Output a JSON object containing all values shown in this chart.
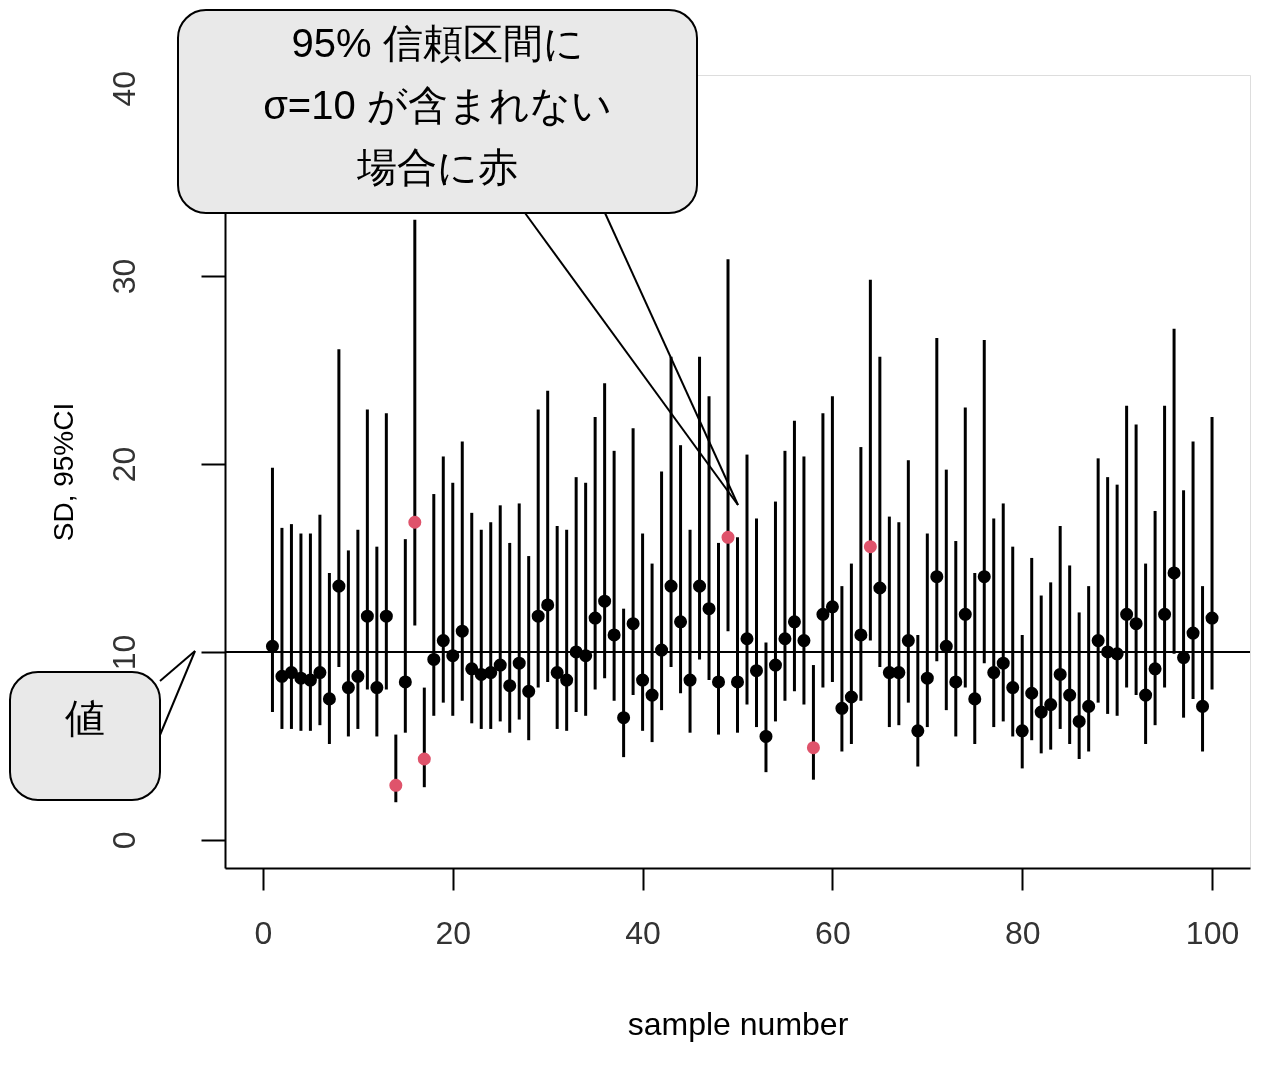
{
  "chart_data": {
    "type": "scatter",
    "xlabel": "sample number",
    "ylabel": "SD, 95%CI",
    "xlim": [
      -4,
      104
    ],
    "ylim": [
      -1.5,
      40.7
    ],
    "xticks": [
      0,
      20,
      40,
      60,
      80,
      100
    ],
    "yticks": [
      0,
      10,
      20,
      30,
      40
    ],
    "marker": "circle",
    "series": [
      {
        "color": "#000000",
        "x": [
          1,
          2,
          3,
          4,
          5,
          6,
          7,
          8,
          9,
          10,
          11,
          12,
          13,
          15,
          18,
          19,
          20,
          21,
          22,
          23,
          24,
          25,
          26,
          27,
          28,
          29,
          30,
          31,
          32,
          33,
          34,
          35,
          36,
          37,
          38,
          39,
          40,
          41,
          42,
          43,
          44,
          45,
          46,
          47,
          48,
          50,
          51,
          52,
          53,
          54,
          55,
          56,
          57,
          59,
          60,
          61,
          62,
          63,
          65,
          66,
          67,
          68,
          69,
          70,
          71,
          72,
          73,
          74,
          75,
          76,
          77,
          78,
          79,
          80,
          81,
          82,
          83,
          84,
          85,
          86,
          87,
          88,
          89,
          90,
          91,
          92,
          93,
          94,
          95,
          96,
          97,
          98,
          99,
          100
        ],
        "values": [
          10.3,
          8.7,
          8.9,
          8.6,
          8.5,
          8.9,
          7.5,
          13.5,
          8.1,
          8.7,
          11.9,
          8.1,
          11.9,
          8.4,
          9.6,
          10.6,
          9.8,
          11.1,
          9.1,
          8.8,
          8.9,
          9.3,
          8.2,
          9.4,
          7.9,
          11.9,
          12.5,
          8.9,
          8.5,
          10.0,
          9.8,
          11.8,
          12.7,
          10.9,
          6.5,
          11.5,
          8.5,
          7.7,
          10.1,
          13.5,
          11.6,
          8.5,
          13.5,
          12.3,
          8.4,
          8.4,
          10.7,
          9.0,
          5.5,
          9.3,
          10.7,
          11.6,
          10.6,
          12.0,
          12.4,
          7.0,
          7.6,
          10.9,
          13.4,
          8.9,
          8.9,
          10.6,
          5.8,
          8.6,
          14.0,
          10.3,
          8.4,
          12.0,
          7.5,
          14.0,
          8.9,
          9.4,
          8.1,
          5.8,
          7.8,
          6.8,
          7.2,
          8.8,
          7.7,
          6.3,
          7.1,
          10.6,
          10.0,
          9.9,
          12.0,
          11.5,
          7.7,
          9.1,
          12.0,
          14.2,
          9.7,
          11.0,
          7.1,
          11.8
        ],
        "errors": [
          [
            6.8,
            19.8
          ],
          [
            5.9,
            16.6
          ],
          [
            5.9,
            16.8
          ],
          [
            5.8,
            16.3
          ],
          [
            5.8,
            16.3
          ],
          [
            6.1,
            17.3
          ],
          [
            5.1,
            14.2
          ],
          [
            9.2,
            26.1
          ],
          [
            5.5,
            15.4
          ],
          [
            5.9,
            16.5
          ],
          [
            8.0,
            22.9
          ],
          [
            5.5,
            15.6
          ],
          [
            8.0,
            22.7
          ],
          [
            5.7,
            16.0
          ],
          [
            6.6,
            18.4
          ],
          [
            7.3,
            20.4
          ],
          [
            6.6,
            19.0
          ],
          [
            7.4,
            21.2
          ],
          [
            6.2,
            17.4
          ],
          [
            5.9,
            16.5
          ],
          [
            5.9,
            16.9
          ],
          [
            6.3,
            17.8
          ],
          [
            5.7,
            15.8
          ],
          [
            6.4,
            17.9
          ],
          [
            5.3,
            15.1
          ],
          [
            8.1,
            22.9
          ],
          [
            8.4,
            23.9
          ],
          [
            5.9,
            16.7
          ],
          [
            5.8,
            16.5
          ],
          [
            6.8,
            19.3
          ],
          [
            6.6,
            19.0
          ],
          [
            8.0,
            22.5
          ],
          [
            8.6,
            24.3
          ],
          [
            7.4,
            20.7
          ],
          [
            4.4,
            12.3
          ],
          [
            7.7,
            21.9
          ],
          [
            5.8,
            16.3
          ],
          [
            5.2,
            14.7
          ],
          [
            6.9,
            19.6
          ],
          [
            9.2,
            25.7
          ],
          [
            7.8,
            21.0
          ],
          [
            5.7,
            16.5
          ],
          [
            9.6,
            25.7
          ],
          [
            8.5,
            23.6
          ],
          [
            5.6,
            15.8
          ],
          [
            5.7,
            16.1
          ],
          [
            7.2,
            20.5
          ],
          [
            6.0,
            17.1
          ],
          [
            3.6,
            10.5
          ],
          [
            6.3,
            18.0
          ],
          [
            7.4,
            20.7
          ],
          [
            7.9,
            22.3
          ],
          [
            7.2,
            20.4
          ],
          [
            8.1,
            22.7
          ],
          [
            8.4,
            23.6
          ],
          [
            4.7,
            13.5
          ],
          [
            5.1,
            14.7
          ],
          [
            7.4,
            20.9
          ],
          [
            9.2,
            25.7
          ],
          [
            6.0,
            17.2
          ],
          [
            6.1,
            16.9
          ],
          [
            7.3,
            20.2
          ],
          [
            3.9,
            10.9
          ],
          [
            6.0,
            16.3
          ],
          [
            9.5,
            26.7
          ],
          [
            6.9,
            19.7
          ],
          [
            5.5,
            15.9
          ],
          [
            8.1,
            23.0
          ],
          [
            5.1,
            14.2
          ],
          [
            9.4,
            26.6
          ],
          [
            6.0,
            17.1
          ],
          [
            6.3,
            17.9
          ],
          [
            5.5,
            15.6
          ],
          [
            3.8,
            10.9
          ],
          [
            5.3,
            15.0
          ],
          [
            4.6,
            13.0
          ],
          [
            4.8,
            13.7
          ],
          [
            5.9,
            16.7
          ],
          [
            5.1,
            14.6
          ],
          [
            4.3,
            12.1
          ],
          [
            4.7,
            13.5
          ],
          [
            7.3,
            20.3
          ],
          [
            6.7,
            19.3
          ],
          [
            6.6,
            18.9
          ],
          [
            8.1,
            23.1
          ],
          [
            7.7,
            22.1
          ],
          [
            5.1,
            14.7
          ],
          [
            6.1,
            17.5
          ],
          [
            8.1,
            23.1
          ],
          [
            9.9,
            27.2
          ],
          [
            6.5,
            18.6
          ],
          [
            7.5,
            21.2
          ],
          [
            4.7,
            13.5
          ],
          [
            8.0,
            22.5
          ]
        ]
      },
      {
        "color": "#df536b",
        "x": [
          14,
          16,
          17,
          49,
          58,
          64
        ],
        "values": [
          2.9,
          16.9,
          4.3,
          16.1,
          4.9,
          15.6
        ],
        "errors": [
          [
            2.0,
            5.6
          ],
          [
            11.4,
            33.0
          ],
          [
            2.8,
            8.1
          ],
          [
            11.1,
            30.9
          ],
          [
            3.2,
            9.3
          ],
          [
            10.6,
            29.8
          ]
        ]
      }
    ],
    "ref_lines": [
      {
        "axis": "y",
        "value": 10,
        "color": "#000000"
      }
    ],
    "annotations": [
      "95% 信頼区間にσ=10 が含まれない場合に赤",
      "値"
    ]
  }
}
